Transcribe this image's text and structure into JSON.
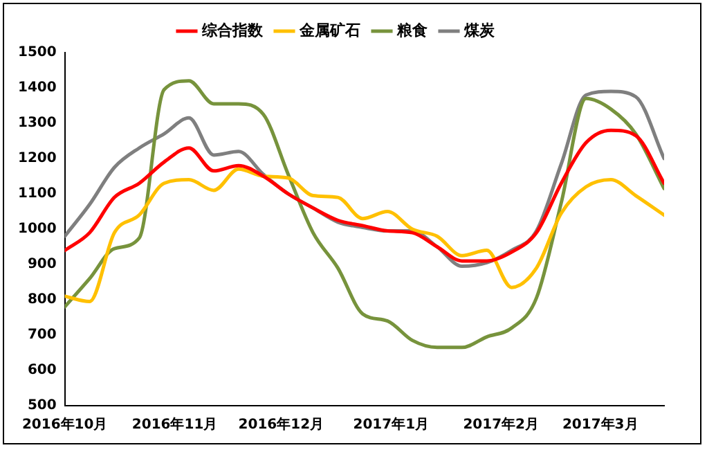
{
  "chart_data": {
    "type": "line",
    "x": [
      "2016-10-01",
      "2016-10-08",
      "2016-10-15",
      "2016-10-22",
      "2016-10-29",
      "2016-11-05",
      "2016-11-12",
      "2016-11-19",
      "2016-11-26",
      "2016-12-03",
      "2016-12-10",
      "2016-12-17",
      "2016-12-24",
      "2016-12-31",
      "2017-01-07",
      "2017-01-14",
      "2017-01-21",
      "2017-01-28",
      "2017-02-04",
      "2017-02-11",
      "2017-02-18",
      "2017-02-25",
      "2017-03-04",
      "2017-03-11",
      "2017-03-19"
    ],
    "series": [
      {
        "name": "综合指数",
        "color": "#ff0000",
        "values": [
          940,
          990,
          1090,
          1130,
          1190,
          1230,
          1165,
          1180,
          1150,
          1100,
          1060,
          1025,
          1010,
          995,
          990,
          950,
          910,
          910,
          935,
          990,
          1130,
          1245,
          1280,
          1265,
          1130
        ]
      },
      {
        "name": "金属矿石",
        "color": "#ffc000",
        "values": [
          810,
          795,
          990,
          1040,
          1130,
          1140,
          1110,
          1170,
          1150,
          1145,
          1095,
          1090,
          1030,
          1050,
          1000,
          980,
          925,
          940,
          835,
          890,
          1045,
          1120,
          1140,
          1095,
          1040
        ]
      },
      {
        "name": "粮食",
        "color": "#77933c",
        "values": [
          780,
          860,
          945,
          975,
          1395,
          1420,
          1355,
          1355,
          1325,
          1155,
          990,
          890,
          760,
          740,
          685,
          665,
          665,
          695,
          720,
          805,
          1075,
          1370,
          1340,
          1270,
          1115
        ]
      },
      {
        "name": "煤炭",
        "color": "#7f7f7f",
        "values": [
          980,
          1070,
          1175,
          1230,
          1270,
          1315,
          1210,
          1220,
          1155,
          1100,
          1060,
          1020,
          1005,
          995,
          995,
          950,
          895,
          905,
          940,
          995,
          1185,
          1380,
          1390,
          1375,
          1200
        ]
      }
    ],
    "xlim": [
      "2016-10-01",
      "2017-03-19"
    ],
    "xticks": [
      {
        "value": "2016-10-01",
        "label": "2016年10月"
      },
      {
        "value": "2016-11-01",
        "label": "2016年11月"
      },
      {
        "value": "2016-12-01",
        "label": "2016年12月"
      },
      {
        "value": "2017-01-01",
        "label": "2017年1月"
      },
      {
        "value": "2017-02-01",
        "label": "2017年2月"
      },
      {
        "value": "2017-03-01",
        "label": "2017年3月"
      }
    ],
    "ylim": [
      500,
      1500
    ],
    "yticks": [
      500,
      600,
      700,
      800,
      900,
      1000,
      1100,
      1200,
      1300,
      1400,
      1500
    ],
    "grid": false,
    "legend": "top",
    "marker": "none",
    "line_style": "solid"
  }
}
